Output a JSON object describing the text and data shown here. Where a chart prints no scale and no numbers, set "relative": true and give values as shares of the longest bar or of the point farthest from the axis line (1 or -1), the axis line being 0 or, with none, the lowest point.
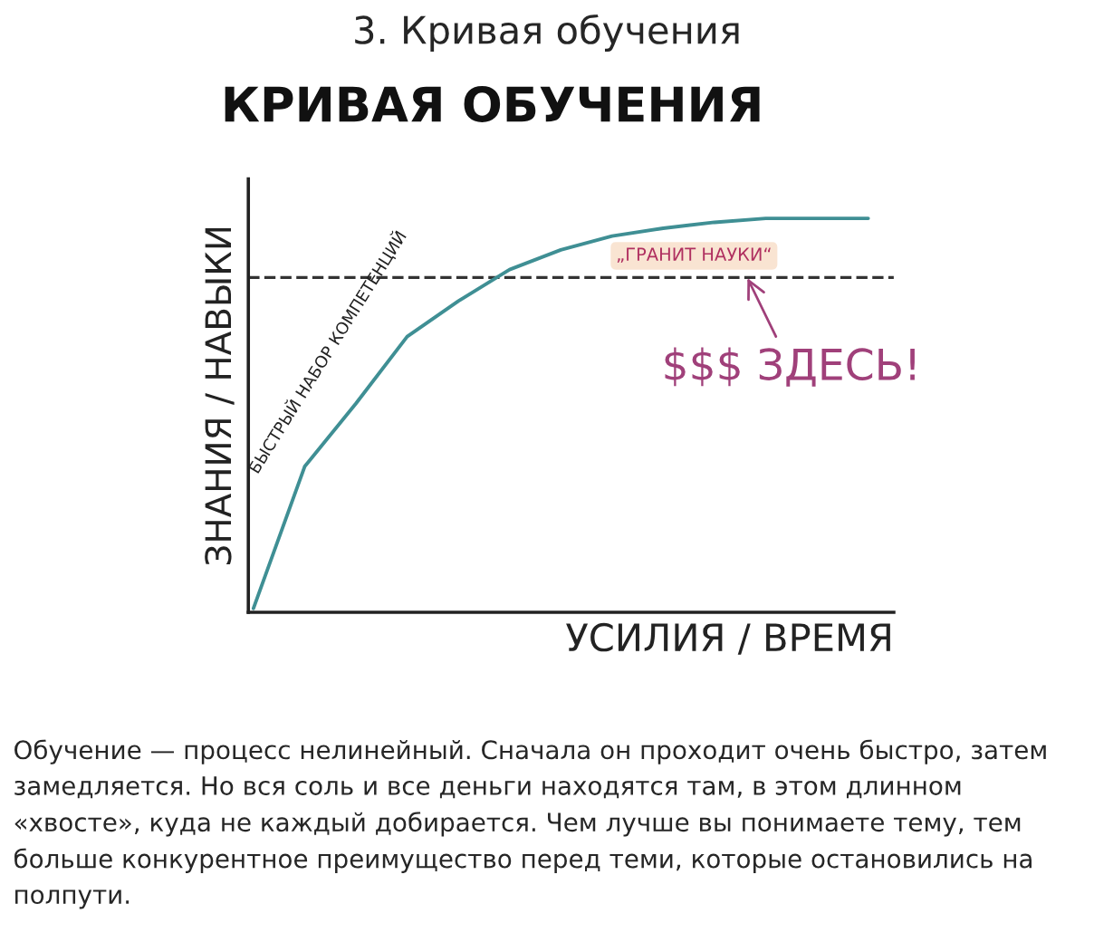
{
  "chart_data": {
    "type": "line",
    "title": "3. Кривая обучения",
    "subtitle": "КРИВАЯ ОБУЧЕНИЯ",
    "xlabel": "УСИЛИЯ / ВРЕМЯ",
    "ylabel": "ЗНАНИЯ / НАВЫКИ",
    "relative": true,
    "categories": [
      null,
      null,
      null,
      null,
      null,
      null,
      null,
      null,
      null,
      null,
      null,
      null,
      null
    ],
    "series": [
      {
        "color": "#3f8f94",
        "values": [
          0.01,
          0.37,
          0.53,
          0.7,
          0.79,
          0.87,
          0.92,
          0.955,
          0.975,
          0.99,
          1.0,
          1.0,
          1.0
        ]
      }
    ],
    "ref_lines": [
      {
        "axis": "y",
        "value": 0.85,
        "color": "#333333",
        "line_style": "dashed"
      }
    ],
    "marker": "none",
    "line_style": "solid",
    "legend": false,
    "annotations": [
      "БЫСТРЫЙ НАБОР КОМПЕТЕНЦИЙ",
      "„ГРАНИТ НАУКИ“",
      "$$$ ЗДЕСЬ!",
      "Обучение — процесс нелинейный. Сначала он проходит очень быстро, затем замедляется. Но вся соль и все деньги находятся там, в этом длинном «хвосте», куда не каждый добирается. Чем лучше вы понимаете тему, тем больше конкурентное преимущество перед теми, которые остановились на полпути."
    ]
  }
}
